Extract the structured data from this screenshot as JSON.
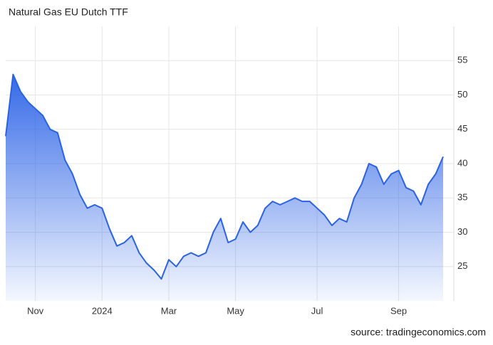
{
  "chart_data": {
    "type": "area",
    "title": "Natural Gas EU Dutch TTF",
    "source": "source: tradingeconomics.com",
    "categories": [
      null,
      null,
      null,
      null,
      "Nov",
      null,
      null,
      null,
      null,
      null,
      null,
      null,
      null,
      "2024",
      null,
      null,
      null,
      null,
      null,
      null,
      null,
      null,
      "Mar",
      null,
      null,
      null,
      null,
      null,
      null,
      null,
      null,
      "May",
      null,
      null,
      null,
      null,
      null,
      null,
      null,
      null,
      null,
      null,
      "Jul",
      null,
      null,
      null,
      null,
      null,
      null,
      null,
      null,
      null,
      null,
      "Sep",
      null,
      null,
      null,
      null,
      null,
      null
    ],
    "values": [
      44,
      53,
      50.5,
      49,
      48,
      47,
      45,
      44.5,
      40.5,
      38.5,
      35.5,
      33.5,
      34,
      33.5,
      30.5,
      28,
      28.5,
      29.5,
      27,
      25.5,
      24.5,
      23.2,
      26,
      25,
      26.5,
      27,
      26.5,
      27,
      30,
      32,
      28.5,
      29,
      31.5,
      30,
      31,
      33.5,
      34.5,
      34,
      34.5,
      35,
      34.5,
      34.5,
      33.5,
      32.5,
      31,
      32,
      31.5,
      35,
      37,
      40,
      39.5,
      37,
      38.5,
      39,
      36.5,
      36,
      34,
      37,
      38.5,
      41
    ],
    "color": "#2a62e6",
    "ylim": [
      20,
      60
    ],
    "yticks": [
      25,
      30,
      35,
      40,
      45,
      50,
      55
    ],
    "grid": true
  }
}
